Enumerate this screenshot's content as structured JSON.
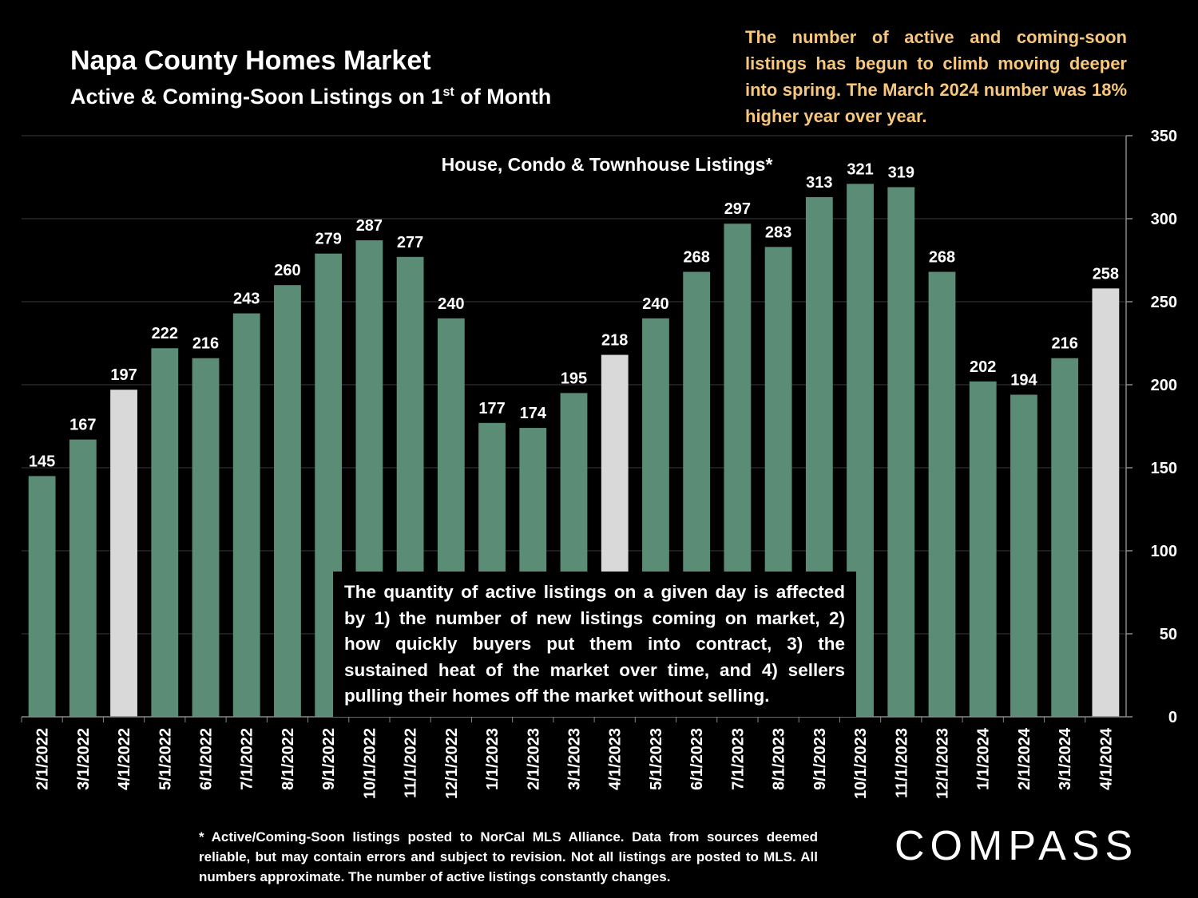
{
  "header": {
    "title": "Napa County Homes Market",
    "subtitle_pre": "Active & Coming-Soon Listings on 1",
    "subtitle_sup": "st",
    "subtitle_post": " of Month"
  },
  "callout_text": "The number of active and coming-soon listings has begun to climb moving deeper into spring. The March 2024 number was 18% higher year over year.",
  "note_text": "The quantity of active listings on a given day is affected by 1) the number of new listings coming on market, 2) how quickly buyers put them into contract, 3) the sustained heat of the market over time, and 4) sellers pulling their homes off the market without selling.",
  "footnote": "* Active/Coming-Soon listings posted to NorCal MLS Alliance.  Data from sources deemed reliable, but may contain errors and subject to revision.  Not all listings are posted to MLS. All numbers approximate. The number of active listings constantly changes.",
  "logo": "COMPASS",
  "colors": {
    "bar": "#5b8c76",
    "highlight_bar": "#d9d9d9",
    "callout": "#f7c77c",
    "background": "#000000"
  },
  "chart_data": {
    "type": "bar",
    "title": "House, Condo & Townhouse Listings*",
    "xlabel": "",
    "ylabel": "",
    "ylim": [
      0,
      350
    ],
    "yticks": [
      0,
      50,
      100,
      150,
      200,
      250,
      300,
      350
    ],
    "y_axis_position": "right",
    "categories": [
      "2/1/2022",
      "3/1/2022",
      "4/1/2022",
      "5/1/2022",
      "6/1/2022",
      "7/1/2022",
      "8/1/2022",
      "9/1/2022",
      "10/1/2022",
      "11/1/2022",
      "12/1/2022",
      "1/1/2023",
      "2/1/2023",
      "3/1/2023",
      "4/1/2023",
      "5/1/2023",
      "6/1/2023",
      "7/1/2023",
      "8/1/2023",
      "9/1/2023",
      "10/1/2023",
      "11/1/2023",
      "12/1/2023",
      "1/1/2024",
      "2/1/2024",
      "3/1/2024",
      "4/1/2024"
    ],
    "values": [
      145,
      167,
      197,
      222,
      216,
      243,
      260,
      279,
      287,
      277,
      240,
      177,
      174,
      195,
      218,
      240,
      268,
      297,
      283,
      313,
      321,
      319,
      268,
      202,
      194,
      216,
      258
    ],
    "highlighted": [
      "4/1/2022",
      "4/1/2023",
      "4/1/2024"
    ]
  }
}
